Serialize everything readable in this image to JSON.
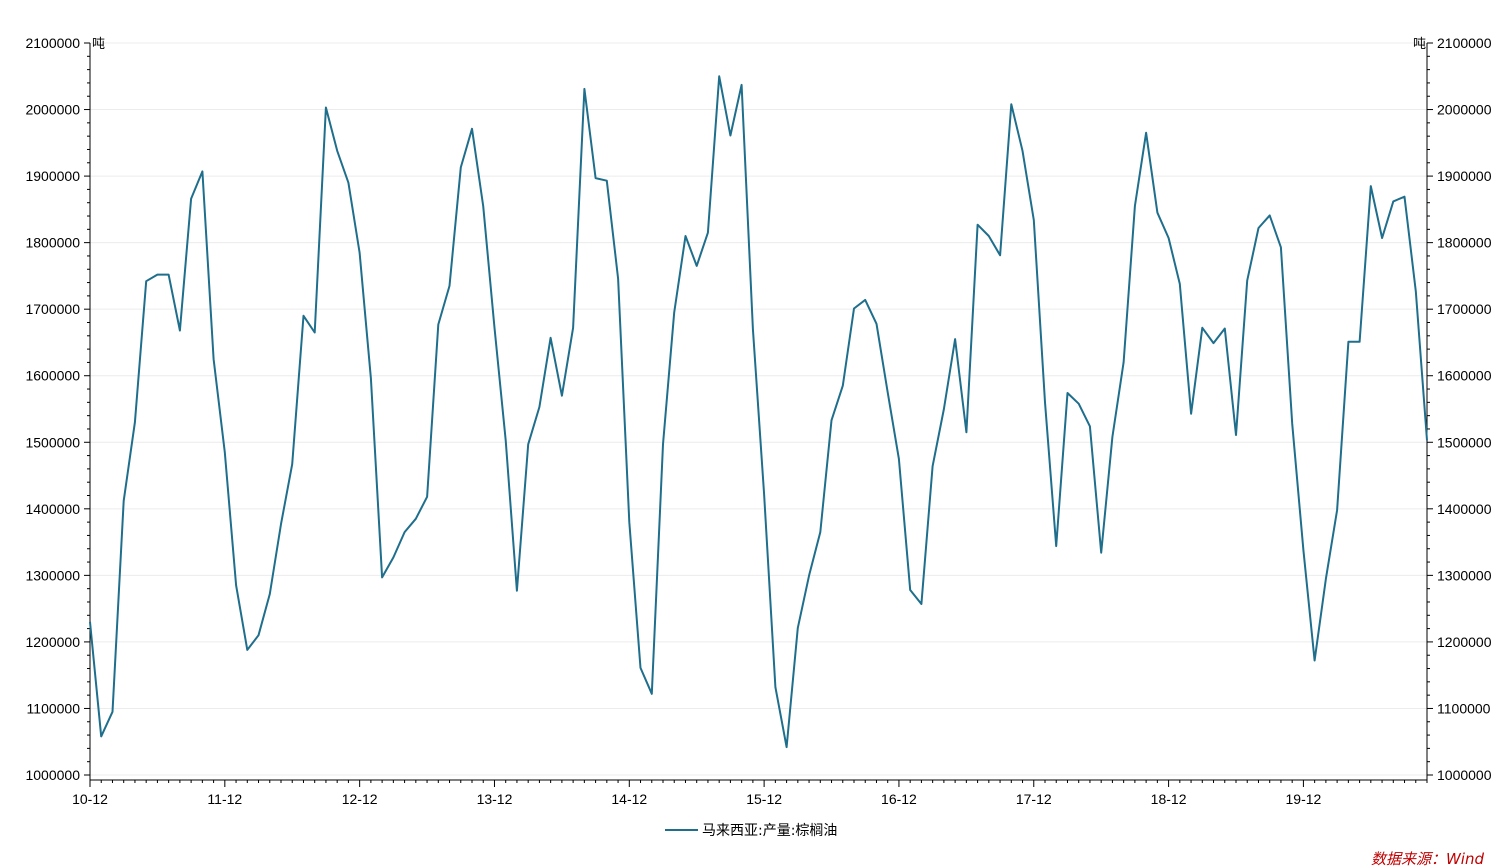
{
  "chart_data": {
    "type": "line",
    "y_unit_left": "吨",
    "y_unit_right": "吨",
    "ylim": [
      1000000,
      2100000
    ],
    "y_ticks": [
      1000000,
      1100000,
      1200000,
      1300000,
      1400000,
      1500000,
      1600000,
      1700000,
      1800000,
      1900000,
      2000000,
      2100000
    ],
    "y_tick_labels": [
      "1000000",
      "1100000",
      "1200000",
      "1300000",
      "1400000",
      "1500000",
      "1600000",
      "1700000",
      "1800000",
      "1900000",
      "2000000",
      "2100000"
    ],
    "x_start": "2010-12",
    "x_end": "2020-11",
    "x_tick_labels": [
      "10-12",
      "11-12",
      "12-12",
      "13-12",
      "14-12",
      "15-12",
      "16-12",
      "17-12",
      "18-12",
      "19-12"
    ],
    "grid": "horizontal",
    "legend_position": "bottom",
    "series": [
      {
        "name": "马来西亚:产量:棕榈油",
        "color": "#1f6e8c",
        "values": [
          1230000,
          1058000,
          1095000,
          1412000,
          1530000,
          1742000,
          1752000,
          1752000,
          1668000,
          1866000,
          1907000,
          1625000,
          1485000,
          1285000,
          1188000,
          1210000,
          1272000,
          1377000,
          1467000,
          1690000,
          1665000,
          2003000,
          1938000,
          1890000,
          1785000,
          1596000,
          1297000,
          1327000,
          1365000,
          1385000,
          1418000,
          1677000,
          1735000,
          1913000,
          1971000,
          1855000,
          1672000,
          1503000,
          1277000,
          1497000,
          1553000,
          1657000,
          1570000,
          1672000,
          2031000,
          1897000,
          1893000,
          1746000,
          1380000,
          1161000,
          1122000,
          1497000,
          1695000,
          1810000,
          1765000,
          1815000,
          2050000,
          1961000,
          2037000,
          1670000,
          1422000,
          1132000,
          1042000,
          1221000,
          1300000,
          1365000,
          1533000,
          1585000,
          1701000,
          1714000,
          1678000,
          1575000,
          1475000,
          1278000,
          1257000,
          1464000,
          1550000,
          1655000,
          1515000,
          1827000,
          1810000,
          1781000,
          2008000,
          1938000,
          1834000,
          1560000,
          1344000,
          1574000,
          1558000,
          1524000,
          1334000,
          1508000,
          1620000,
          1855000,
          1965000,
          1845000,
          1807000,
          1738000,
          1543000,
          1672000,
          1649000,
          1671000,
          1511000,
          1743000,
          1822000,
          1841000,
          1793000,
          1528000,
          1338000,
          1172000,
          1295000,
          1398000,
          1651000,
          1651000,
          1885000,
          1807000,
          1862000,
          1869000,
          1727000,
          1503000
        ]
      }
    ],
    "source": "数据来源：Wind"
  }
}
